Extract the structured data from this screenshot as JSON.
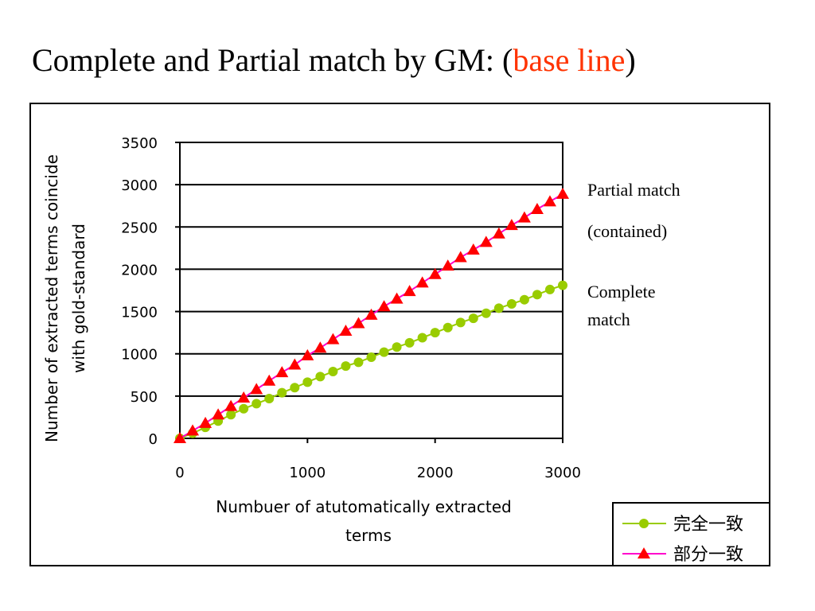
{
  "title": {
    "prefix": "Complete and Partial match by GM: (",
    "accent": "base line",
    "suffix": ")"
  },
  "colors": {
    "accent": "#ff3300",
    "complete_series": "#99cc00",
    "partial_series_line": "#ff00cc",
    "partial_series_marker": "#ff0000"
  },
  "chart_data": {
    "type": "line",
    "xlabel_lines": [
      "Numbuer of atutomatically extracted",
      "terms"
    ],
    "ylabel_lines": [
      "Number of extracted terms coincide",
      "with gold-standard"
    ],
    "xlim": [
      0,
      3000
    ],
    "ylim": [
      0,
      3500
    ],
    "xticks": [
      0,
      1000,
      2000,
      3000
    ],
    "yticks": [
      0,
      500,
      1000,
      1500,
      2000,
      2500,
      3000,
      3500
    ],
    "grid": "horizontal",
    "legend_position": "bottom-right",
    "annotations": {
      "partial_line1": "Partial match",
      "partial_line2": "(contained)",
      "complete_line1": "Complete",
      "complete_line2": "match"
    },
    "series": [
      {
        "name": "完全一致",
        "marker": "circle",
        "x": [
          0,
          100,
          200,
          300,
          400,
          500,
          600,
          700,
          800,
          900,
          1000,
          1100,
          1200,
          1300,
          1400,
          1500,
          1600,
          1700,
          1800,
          1900,
          2000,
          2100,
          2200,
          2300,
          2400,
          2500,
          2600,
          2700,
          2800,
          2900,
          3000
        ],
        "y": [
          0,
          60,
          130,
          205,
          280,
          350,
          410,
          470,
          540,
          600,
          665,
          730,
          790,
          855,
          900,
          960,
          1020,
          1080,
          1130,
          1190,
          1250,
          1310,
          1370,
          1420,
          1480,
          1540,
          1590,
          1640,
          1700,
          1760,
          1810
        ]
      },
      {
        "name": "部分一致",
        "marker": "triangle",
        "x": [
          0,
          100,
          200,
          300,
          400,
          500,
          600,
          700,
          800,
          900,
          1000,
          1100,
          1200,
          1300,
          1400,
          1500,
          1600,
          1700,
          1800,
          1900,
          2000,
          2100,
          2200,
          2300,
          2400,
          2500,
          2600,
          2700,
          2800,
          2900,
          3000
        ],
        "y": [
          0,
          90,
          180,
          280,
          380,
          480,
          580,
          680,
          780,
          870,
          980,
          1070,
          1170,
          1270,
          1360,
          1460,
          1560,
          1650,
          1740,
          1840,
          1940,
          2040,
          2140,
          2230,
          2320,
          2420,
          2520,
          2610,
          2710,
          2800,
          2890
        ]
      }
    ]
  }
}
